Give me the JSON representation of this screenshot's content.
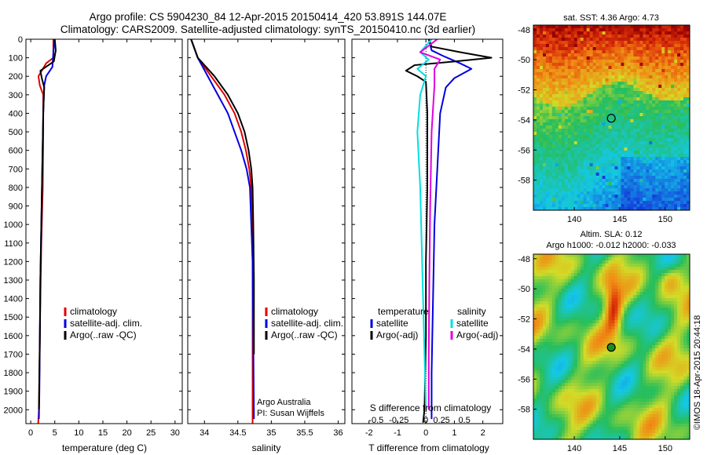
{
  "title": {
    "line1": "Argo profile: CS 5904230_84 12-Apr-2015 20150414_420 53.891S 144.07E",
    "line2": "Climatology: CARS2009. Satellite-adjusted climatology: synTS_20150410.nc (3d earlier)"
  },
  "colors": {
    "climatology": "#e00000",
    "satellite": "#0000e0",
    "argo": "#000000",
    "sat_salinity": "#00e0e0",
    "argo_salinity": "#e000e0"
  },
  "chart_data": [
    {
      "type": "line",
      "panel": "temperature",
      "xlabel": "temperature (deg C)",
      "xlim": [
        -1,
        31.5
      ],
      "xticks": [
        0,
        5,
        10,
        15,
        20,
        25,
        30
      ],
      "ylim": [
        0,
        2075
      ],
      "yticks": [
        0,
        100,
        200,
        300,
        400,
        500,
        600,
        700,
        800,
        900,
        1000,
        1100,
        1200,
        1300,
        1400,
        1500,
        1600,
        1700,
        1800,
        1900,
        2000
      ],
      "legend": [
        "climatology",
        "satellite-adj. clim.",
        "Argo(..raw -QC)"
      ],
      "series": [
        {
          "name": "climatology",
          "color": "climatology",
          "x": [
            4.7,
            4.7,
            3.2,
            1.6,
            1.9,
            2.6,
            2.6,
            2.5,
            2.2,
            2.0,
            1.85,
            1.7,
            1.55
          ],
          "y": [
            0,
            100,
            130,
            200,
            250,
            300,
            500,
            800,
            1100,
            1400,
            1700,
            2000,
            2075
          ]
        },
        {
          "name": "satellite-adj. clim.",
          "color": "satellite",
          "x": [
            4.9,
            4.5,
            3.2,
            2.8,
            2.6,
            2.4,
            2.2,
            2.0,
            1.9,
            1.8,
            1.7
          ],
          "y": [
            0,
            150,
            200,
            250,
            400,
            700,
            1000,
            1300,
            1600,
            1900,
            2050
          ]
        },
        {
          "name": "Argo(..raw -QC)",
          "color": "argo",
          "x": [
            5.0,
            5.2,
            4.8,
            2.0,
            2.3,
            2.8,
            2.6,
            2.4,
            2.2,
            2.0,
            1.9,
            1.7
          ],
          "y": [
            0,
            60,
            120,
            170,
            210,
            260,
            400,
            700,
            1000,
            1300,
            1600,
            2000
          ]
        }
      ]
    },
    {
      "type": "line",
      "panel": "salinity",
      "xlabel": "salinity",
      "xlim": [
        33.75,
        36.1
      ],
      "xticks": [
        34,
        34.5,
        35,
        35.5,
        36
      ],
      "ylim": [
        0,
        2075
      ],
      "legend": [
        "climatology",
        "satellite-adj. clim.",
        "Argo(..raw -QC)"
      ],
      "annotation": [
        "Argo Australia",
        "PI: Susan Wijffels"
      ],
      "series": [
        {
          "name": "climatology",
          "color": "climatology",
          "x": [
            33.8,
            33.9,
            34.1,
            34.3,
            34.45,
            34.55,
            34.62,
            34.67,
            34.7,
            34.71,
            34.72,
            34.72,
            34.72
          ],
          "y": [
            0,
            100,
            200,
            300,
            400,
            500,
            600,
            700,
            800,
            1000,
            1200,
            1600,
            2075
          ]
        },
        {
          "name": "satellite-adj. clim.",
          "color": "satellite",
          "x": [
            33.8,
            33.9,
            34.05,
            34.2,
            34.35,
            34.45,
            34.55,
            34.63,
            34.68,
            34.7,
            34.72,
            34.73,
            34.74
          ],
          "y": [
            0,
            100,
            200,
            300,
            400,
            500,
            600,
            700,
            800,
            1000,
            1200,
            1600,
            2050
          ]
        },
        {
          "name": "Argo(..raw -QC)",
          "color": "argo",
          "x": [
            33.8,
            33.9,
            34.15,
            34.35,
            34.5,
            34.6,
            34.66,
            34.7,
            34.72,
            34.73,
            34.74,
            34.74
          ],
          "y": [
            0,
            100,
            200,
            300,
            400,
            500,
            600,
            700,
            800,
            1000,
            1300,
            1700
          ]
        }
      ]
    },
    {
      "type": "line",
      "panel": "difference",
      "xlabel": "T difference from climatology",
      "xlim": [
        -2.6,
        2.7
      ],
      "xticks": [
        -2,
        -1,
        0,
        1,
        2
      ],
      "top_axis_label": "S difference from climatology",
      "top_ticks": [
        "-0.5",
        "-0.25",
        "0",
        "0.25",
        "0.5"
      ],
      "top_tick_T": [
        -1.75,
        -0.95,
        0,
        0.55,
        1.35
      ],
      "ylim": [
        0,
        2075
      ],
      "legend_left_title": "temperature",
      "legend_right_title": "salinity",
      "legend": [
        "satellite",
        "Argo(-adj)",
        "satellite",
        "Argo(-adj)"
      ],
      "series": [
        {
          "name": "satellite",
          "color": "satellite",
          "x": [
            0.1,
            0.2,
            0.6,
            0.9,
            1.2,
            1.6,
            1.0,
            0.7,
            0.5,
            0.4,
            0.3,
            0.25,
            0.2,
            0.2
          ],
          "y": [
            0,
            60,
            90,
            110,
            130,
            160,
            210,
            260,
            400,
            700,
            1000,
            1400,
            1800,
            2050
          ]
        },
        {
          "name": "Argo(-adj)",
          "color": "argo",
          "x": [
            0.1,
            0.2,
            1.2,
            2.3,
            1.0,
            -0.4,
            -0.7,
            -0.3,
            0.0,
            0.05,
            0.05,
            0.0,
            0.0,
            -0.05,
            -0.1
          ],
          "y": [
            0,
            40,
            70,
            100,
            120,
            140,
            170,
            200,
            230,
            400,
            800,
            1200,
            1600,
            2000,
            2070
          ]
        },
        {
          "name": "satellite",
          "color": "sat_salinity",
          "x": [
            0.2,
            -0.2,
            0.1,
            -0.3,
            0.0,
            -0.2,
            -0.3,
            -0.2,
            -0.15,
            -0.1,
            -0.05,
            0.0
          ],
          "y": [
            0,
            70,
            110,
            160,
            200,
            300,
            500,
            800,
            1100,
            1400,
            1700,
            2000
          ]
        },
        {
          "name": "Argo(-adj)",
          "color": "argo_salinity",
          "x": [
            0.4,
            -0.2,
            0.5,
            0.3,
            0.3,
            0.2,
            0.15,
            0.12,
            0.1,
            0.1
          ],
          "y": [
            0,
            70,
            110,
            160,
            250,
            500,
            900,
            1300,
            1700,
            2000
          ]
        }
      ]
    },
    {
      "type": "heatmap",
      "panel": "sst_map",
      "title": "sat. SST: 4.36 Argo: 4.73",
      "xticks": [
        140,
        145,
        150
      ],
      "yticks": [
        -48,
        -50,
        -52,
        -54,
        -56,
        -58
      ],
      "xlim": [
        135.5,
        152.7
      ],
      "ylim": [
        -60,
        -47.7
      ],
      "marker": {
        "lon": 144.07,
        "lat": -53.891
      }
    },
    {
      "type": "heatmap",
      "panel": "sla_map",
      "title": "Altim. SLA: 0.12",
      "subtitle": "Argo h1000: -0.012 h2000: -0.033",
      "xticks": [
        140,
        145,
        150
      ],
      "yticks": [
        -48,
        -50,
        -52,
        -54,
        -56,
        -58
      ],
      "xlim": [
        135.5,
        152.7
      ],
      "ylim": [
        -60,
        -47.7
      ],
      "marker": {
        "lon": 144.07,
        "lat": -53.891
      }
    }
  ],
  "credit": "©IMOS 18-Apr-2015 20:44:18"
}
